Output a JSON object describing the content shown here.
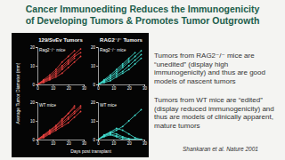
{
  "slide": {
    "title_lines": [
      "Cancer Immunoediting Reduces the Immunogenicity",
      "of Developing Tumors & Promotes Tumor Outgrowth"
    ],
    "column_titles": [
      "129/SvEv Tumors",
      "RAG2⁻/⁻ Tumors"
    ],
    "y_label": "Average Tumor Diameter (mm)",
    "x_label": "Days post transplant",
    "notes": [
      "Tumors from RAG2⁻/⁻ mice are “unedited” (display high immunogenicity) and thus are good models of nascent tumors",
      "Tumors from WT mice are “edited” (display reduced immunogenicity) and thus are models of clinically apparent, mature tumors"
    ],
    "citation": "Shankaran et al. Nature 2001"
  },
  "chart_data": [
    {
      "type": "line",
      "title": "Rag2⁻/⁻ mice",
      "marker": "circle",
      "x": [
        0,
        4,
        8,
        12,
        16,
        20,
        24,
        28
      ],
      "xlim": [
        0,
        30
      ],
      "xticks": [
        0,
        10,
        20,
        30
      ],
      "ylim": [
        0,
        20
      ],
      "yticks": [
        0,
        10,
        20
      ],
      "series": [
        {
          "color": "#e8413f",
          "values": [
            0,
            2,
            4,
            7,
            10,
            13,
            16,
            19
          ]
        },
        {
          "color": "#e8413f",
          "values": [
            0,
            1.5,
            3,
            5,
            8,
            11,
            14,
            null
          ]
        },
        {
          "color": "#e8413f",
          "values": [
            0,
            2.5,
            5,
            8,
            12,
            15,
            18,
            null
          ]
        },
        {
          "color": "#e8413f",
          "values": [
            0,
            1,
            2.5,
            4,
            6,
            9,
            12,
            15
          ]
        },
        {
          "color": "#e8413f",
          "values": [
            0,
            2,
            3.5,
            6,
            9,
            12,
            15,
            17
          ]
        }
      ]
    },
    {
      "type": "line",
      "title": "Rag2⁻/⁻ mice",
      "marker": "circle",
      "x": [
        0,
        4,
        8,
        12,
        16,
        20,
        24,
        28
      ],
      "xlim": [
        0,
        30
      ],
      "xticks": [
        0,
        10,
        20,
        30
      ],
      "ylim": [
        0,
        20
      ],
      "yticks": [
        0,
        10,
        20
      ],
      "series": [
        {
          "color": "#43e0d2",
          "values": [
            0,
            2,
            4,
            6,
            9,
            12,
            15,
            18
          ]
        },
        {
          "color": "#43e0d2",
          "values": [
            0,
            1.5,
            3,
            5,
            7,
            10,
            13,
            16
          ]
        },
        {
          "color": "#43e0d2",
          "values": [
            0,
            2.5,
            5,
            8,
            11,
            14,
            17,
            null
          ]
        },
        {
          "color": "#43e0d2",
          "values": [
            0,
            1,
            2,
            4,
            6,
            8,
            11,
            14
          ]
        },
        {
          "color": "#43e0d2",
          "values": [
            0,
            2,
            4,
            7,
            10,
            13,
            null,
            null
          ]
        }
      ]
    },
    {
      "type": "line",
      "title": "WT mice",
      "marker": "circle",
      "x": [
        0,
        4,
        8,
        12,
        16,
        20,
        24,
        28
      ],
      "xlim": [
        0,
        30
      ],
      "xticks": [
        0,
        10,
        20,
        30
      ],
      "ylim": [
        0,
        20
      ],
      "yticks": [
        0,
        10,
        20
      ],
      "series": [
        {
          "color": "#e8413f",
          "values": [
            0,
            2,
            4,
            6,
            9,
            12,
            15,
            18
          ]
        },
        {
          "color": "#e8413f",
          "values": [
            0,
            1.5,
            3.5,
            6,
            8,
            11,
            14,
            17
          ]
        },
        {
          "color": "#e8413f",
          "values": [
            0,
            2,
            4.5,
            7,
            10,
            14,
            17,
            null
          ]
        },
        {
          "color": "#e8413f",
          "values": [
            0,
            1,
            3,
            5,
            7,
            9,
            12,
            15
          ]
        },
        {
          "color": "#e8413f",
          "values": [
            0,
            2.5,
            5,
            7.5,
            11,
            14,
            18,
            null
          ]
        }
      ]
    },
    {
      "type": "line",
      "title": "WT mice",
      "marker": "circle",
      "x": [
        0,
        4,
        8,
        12,
        16,
        20,
        24,
        28
      ],
      "xlim": [
        0,
        30
      ],
      "xticks": [
        0,
        10,
        20,
        30
      ],
      "ylim": [
        0,
        20
      ],
      "yticks": [
        0,
        10,
        20
      ],
      "series": [
        {
          "color": "#43e0d2",
          "values": [
            0,
            2,
            3,
            2,
            1,
            0,
            0,
            0
          ]
        },
        {
          "color": "#43e0d2",
          "values": [
            0,
            2.5,
            4,
            3,
            1.5,
            0.5,
            0,
            0
          ]
        },
        {
          "color": "#43e0d2",
          "values": [
            0,
            2,
            3.5,
            5,
            7,
            10,
            13,
            16
          ]
        },
        {
          "color": "#43e0d2",
          "values": [
            0,
            1.5,
            2.5,
            1.5,
            0,
            0,
            0,
            0
          ]
        },
        {
          "color": "#43e0d2",
          "values": [
            0,
            2,
            4,
            6,
            5,
            3,
            1,
            0
          ]
        }
      ]
    }
  ]
}
